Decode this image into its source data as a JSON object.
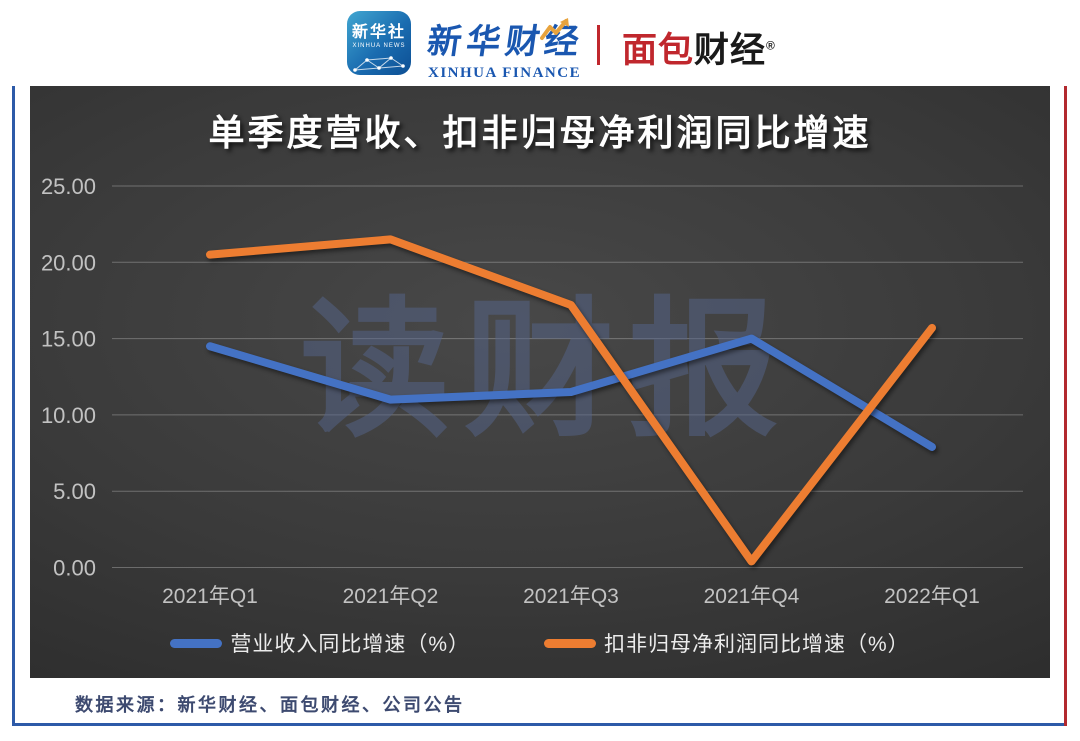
{
  "header": {
    "xinhua_news_badge": {
      "title": "新华社",
      "subtitle": "XINHUA NEWS"
    },
    "xinhua_finance": {
      "cn": "新华财经",
      "en": "XINHUA FINANCE"
    },
    "mianbao_finance": {
      "red": "面包",
      "black": "财经",
      "reg": "®"
    }
  },
  "chart_data": {
    "type": "line",
    "title": "单季度营收、扣非归母净利润同比增速",
    "categories": [
      "2021年Q1",
      "2021年Q2",
      "2021年Q3",
      "2021年Q4",
      "2022年Q1"
    ],
    "series": [
      {
        "name": "营业收入同比增速（%）",
        "color": "#4472c4",
        "values": [
          14.5,
          11.0,
          11.5,
          15.0,
          7.9
        ]
      },
      {
        "name": "扣非归母净利润同比增速（%）",
        "color": "#ed7d31",
        "values": [
          20.5,
          21.5,
          17.2,
          0.4,
          15.7
        ]
      }
    ],
    "ylim": [
      0,
      25
    ],
    "ytick_labels": [
      "0.00",
      "5.00",
      "10.00",
      "15.00",
      "20.00",
      "25.00"
    ],
    "grid": true,
    "legend_position": "bottom",
    "watermark": "读财报"
  },
  "footer": {
    "source": "数据来源：新华财经、面包财经、公司公告"
  },
  "colors": {
    "revenue_line": "#4472c4",
    "profit_line": "#ed7d31",
    "border_blue": "#2d5aa8",
    "border_red": "#b2292e",
    "brand_blue": "#1a57b0",
    "brand_red": "#c0272d",
    "axis_text": "#c2c2c2",
    "watermark_text": "#55658c"
  }
}
